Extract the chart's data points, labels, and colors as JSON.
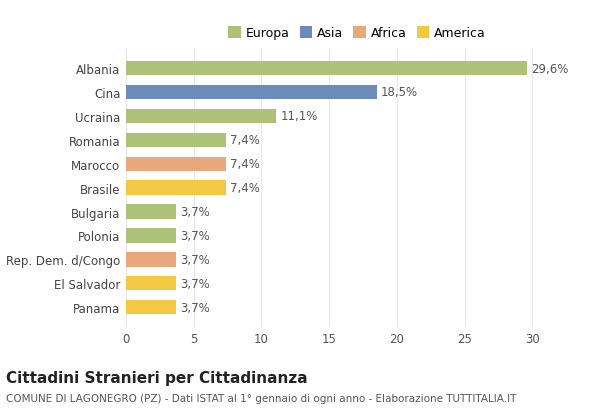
{
  "categories": [
    "Albania",
    "Cina",
    "Ucraina",
    "Romania",
    "Marocco",
    "Brasile",
    "Bulgaria",
    "Polonia",
    "Rep. Dem. d/Congo",
    "El Salvador",
    "Panama"
  ],
  "values": [
    29.6,
    18.5,
    11.1,
    7.4,
    7.4,
    7.4,
    3.7,
    3.7,
    3.7,
    3.7,
    3.7
  ],
  "labels": [
    "29,6%",
    "18,5%",
    "11,1%",
    "7,4%",
    "7,4%",
    "7,4%",
    "3,7%",
    "3,7%",
    "3,7%",
    "3,7%",
    "3,7%"
  ],
  "colors": [
    "#adc178",
    "#6b8cba",
    "#adc178",
    "#adc178",
    "#e8a87c",
    "#f5c842",
    "#adc178",
    "#adc178",
    "#e8a87c",
    "#f5c842",
    "#f5c842"
  ],
  "legend_labels": [
    "Europa",
    "Asia",
    "Africa",
    "America"
  ],
  "legend_colors": [
    "#adc178",
    "#6b8cba",
    "#e8a87c",
    "#f5c842"
  ],
  "title": "Cittadini Stranieri per Cittadinanza",
  "subtitle": "COMUNE DI LAGONEGRO (PZ) - Dati ISTAT al 1° gennaio di ogni anno - Elaborazione TUTTITALIA.IT",
  "xlim": [
    0,
    31
  ],
  "xticks": [
    0,
    5,
    10,
    15,
    20,
    25,
    30
  ],
  "background_color": "#ffffff",
  "grid_color": "#e8e8e8",
  "bar_height": 0.6,
  "label_fontsize": 8.5,
  "tick_fontsize": 8.5,
  "title_fontsize": 11,
  "subtitle_fontsize": 7.5
}
